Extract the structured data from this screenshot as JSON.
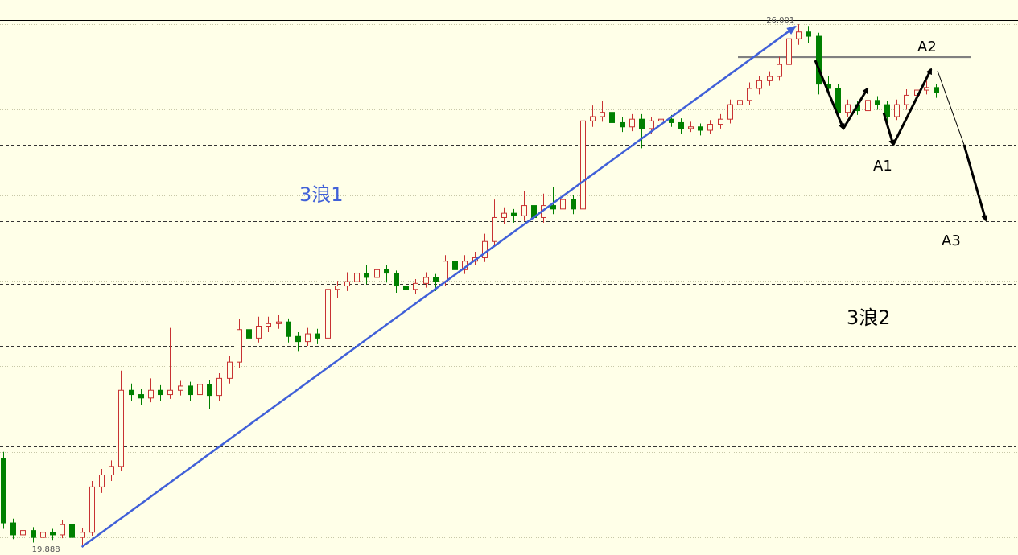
{
  "chart_data": {
    "type": "candlestick",
    "ylim": [
      19.813,
      26.265
    ],
    "grid_levels": [
      20,
      21,
      22,
      23,
      24,
      25,
      26
    ],
    "levels": [
      24.59,
      23.7,
      22.96,
      22.24,
      21.06
    ],
    "resistance": 25.62,
    "up_color": "#c83232",
    "down_color": "#008000",
    "wave_color": "#4060d8",
    "annotations": [
      "3浪1",
      "3浪2",
      "A1",
      "A2",
      "A3"
    ],
    "ohlc": [
      [
        20.92,
        21.0,
        20.1,
        20.17
      ],
      [
        20.17,
        20.22,
        19.98,
        20.03
      ],
      [
        20.03,
        20.14,
        19.99,
        20.08
      ],
      [
        20.08,
        20.12,
        19.94,
        20.0
      ],
      [
        20.0,
        20.11,
        19.95,
        20.06
      ],
      [
        20.06,
        20.1,
        19.97,
        20.03
      ],
      [
        20.03,
        20.2,
        19.99,
        20.15
      ],
      [
        20.15,
        20.18,
        19.95,
        20.0
      ],
      [
        20.0,
        20.11,
        19.888,
        20.06
      ],
      [
        20.06,
        20.66,
        20.02,
        20.59
      ],
      [
        20.59,
        20.8,
        20.52,
        20.73
      ],
      [
        20.73,
        20.9,
        20.66,
        20.83
      ],
      [
        20.83,
        21.95,
        20.78,
        21.72
      ],
      [
        21.72,
        21.8,
        21.6,
        21.67
      ],
      [
        21.67,
        21.74,
        21.55,
        21.63
      ],
      [
        21.63,
        21.86,
        21.58,
        21.72
      ],
      [
        21.72,
        21.78,
        21.6,
        21.67
      ],
      [
        21.67,
        22.45,
        21.62,
        21.72
      ],
      [
        21.72,
        21.83,
        21.66,
        21.77
      ],
      [
        21.77,
        21.82,
        21.6,
        21.67
      ],
      [
        21.67,
        21.86,
        21.62,
        21.79
      ],
      [
        21.79,
        21.84,
        21.5,
        21.66
      ],
      [
        21.66,
        21.92,
        21.6,
        21.86
      ],
      [
        21.86,
        22.12,
        21.8,
        22.05
      ],
      [
        22.05,
        22.55,
        21.98,
        22.43
      ],
      [
        22.43,
        22.5,
        22.26,
        22.33
      ],
      [
        22.33,
        22.58,
        22.28,
        22.47
      ],
      [
        22.47,
        22.58,
        22.4,
        22.5
      ],
      [
        22.5,
        22.6,
        22.44,
        22.52
      ],
      [
        22.52,
        22.56,
        22.28,
        22.35
      ],
      [
        22.35,
        22.4,
        22.18,
        22.29
      ],
      [
        22.29,
        22.45,
        22.24,
        22.38
      ],
      [
        22.38,
        22.44,
        22.26,
        22.33
      ],
      [
        22.33,
        23.05,
        22.28,
        22.9
      ],
      [
        22.9,
        23.0,
        22.8,
        22.94
      ],
      [
        22.94,
        23.1,
        22.88,
        22.99
      ],
      [
        22.99,
        23.45,
        22.92,
        23.09
      ],
      [
        23.09,
        23.18,
        22.96,
        23.04
      ],
      [
        23.04,
        23.2,
        22.98,
        23.13
      ],
      [
        23.13,
        23.18,
        22.98,
        23.09
      ],
      [
        23.09,
        23.12,
        22.86,
        22.94
      ],
      [
        22.94,
        22.99,
        22.82,
        22.9
      ],
      [
        22.9,
        23.02,
        22.85,
        22.97
      ],
      [
        22.97,
        23.1,
        22.92,
        23.04
      ],
      [
        23.04,
        23.08,
        22.88,
        22.99
      ],
      [
        22.99,
        23.3,
        22.94,
        23.23
      ],
      [
        23.23,
        23.28,
        23.0,
        23.13
      ],
      [
        23.13,
        23.3,
        23.08,
        23.23
      ],
      [
        23.23,
        23.34,
        23.18,
        23.27
      ],
      [
        23.27,
        23.55,
        23.22,
        23.46
      ],
      [
        23.46,
        23.95,
        23.4,
        23.74
      ],
      [
        23.74,
        23.86,
        23.66,
        23.79
      ],
      [
        23.79,
        23.84,
        23.68,
        23.76
      ],
      [
        23.76,
        24.05,
        23.7,
        23.88
      ],
      [
        23.88,
        23.95,
        23.48,
        23.74
      ],
      [
        23.74,
        24.02,
        23.68,
        23.88
      ],
      [
        23.88,
        24.1,
        23.78,
        23.84
      ],
      [
        23.84,
        24.05,
        23.79,
        23.95
      ],
      [
        23.95,
        24.0,
        23.78,
        23.84
      ],
      [
        23.84,
        25.0,
        23.8,
        24.87
      ],
      [
        24.87,
        25.05,
        24.8,
        24.92
      ],
      [
        24.92,
        25.1,
        24.86,
        24.97
      ],
      [
        24.97,
        25.02,
        24.72,
        24.85
      ],
      [
        24.85,
        24.92,
        24.74,
        24.8
      ],
      [
        24.8,
        24.95,
        24.75,
        24.89
      ],
      [
        24.89,
        24.95,
        24.55,
        24.78
      ],
      [
        24.78,
        24.92,
        24.72,
        24.87
      ],
      [
        24.87,
        24.92,
        24.82,
        24.89
      ],
      [
        24.89,
        24.94,
        24.8,
        24.85
      ],
      [
        24.85,
        24.9,
        24.72,
        24.78
      ],
      [
        24.78,
        24.86,
        24.74,
        24.8
      ],
      [
        24.8,
        24.84,
        24.7,
        24.76
      ],
      [
        24.76,
        24.88,
        24.72,
        24.83
      ],
      [
        24.83,
        24.95,
        24.78,
        24.89
      ],
      [
        24.89,
        25.12,
        24.84,
        25.06
      ],
      [
        25.06,
        25.18,
        25.0,
        25.11
      ],
      [
        25.11,
        25.32,
        25.06,
        25.25
      ],
      [
        25.25,
        25.4,
        25.18,
        25.34
      ],
      [
        25.34,
        25.45,
        25.28,
        25.39
      ],
      [
        25.39,
        25.62,
        25.34,
        25.53
      ],
      [
        25.53,
        25.9,
        25.48,
        25.83
      ],
      [
        25.83,
        26.001,
        25.76,
        25.91
      ],
      [
        25.91,
        25.98,
        25.78,
        25.86
      ],
      [
        25.86,
        25.9,
        25.18,
        25.3
      ],
      [
        25.3,
        25.4,
        25.18,
        25.25
      ],
      [
        25.25,
        25.3,
        24.9,
        24.97
      ],
      [
        24.97,
        25.12,
        24.92,
        25.06
      ],
      [
        25.06,
        25.1,
        24.94,
        24.99
      ],
      [
        24.99,
        25.18,
        24.95,
        25.11
      ],
      [
        25.11,
        25.16,
        25.0,
        25.06
      ],
      [
        25.06,
        25.1,
        24.87,
        24.92
      ],
      [
        24.92,
        25.12,
        24.88,
        25.06
      ],
      [
        25.06,
        25.24,
        25.0,
        25.17
      ],
      [
        25.17,
        25.28,
        25.12,
        25.23
      ],
      [
        25.23,
        25.34,
        25.18,
        25.26
      ],
      [
        25.26,
        25.3,
        25.14,
        25.2
      ]
    ]
  }
}
